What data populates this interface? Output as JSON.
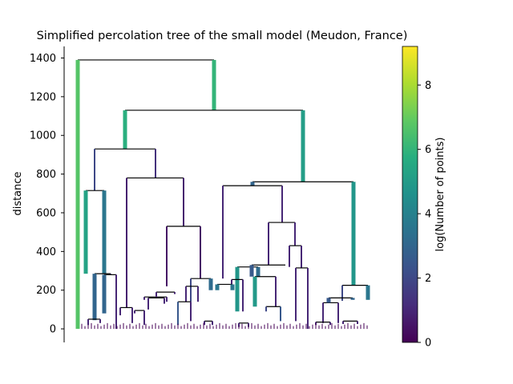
{
  "chart_data": {
    "type": "dendrogram",
    "title": "Simplified percolation tree of the small model (Meudon, France)",
    "ylabel": "distance",
    "xlabel": "",
    "ylim": [
      -70,
      1460
    ],
    "yticks": [
      0,
      200,
      400,
      600,
      800,
      1000,
      1200,
      1400
    ],
    "grid": false,
    "colormap": "viridis",
    "colorbar": {
      "label": "log(Number of points)",
      "range": [
        0,
        9.2
      ],
      "ticks": [
        0,
        2,
        4,
        6,
        8
      ]
    },
    "top_merges": [
      {
        "distance": 1390,
        "left_log_points": 6.7,
        "right_log_points": 6.0
      },
      {
        "distance": 1130,
        "left_log_points": 5.8,
        "right_log_points": 5.1
      },
      {
        "distance": 930,
        "left_log_points": 2.0,
        "right_log_points": 1.3
      },
      {
        "distance": 780,
        "left_log_points": 0.8,
        "right_log_points": 0.8
      },
      {
        "distance": 760,
        "left_log_points": 3.0,
        "right_log_points": 4.8
      },
      {
        "distance": 740,
        "left_log_points": 1.0,
        "right_log_points": 1.0
      },
      {
        "distance": 715,
        "left_log_points": 5.3,
        "right_log_points": 3.6
      },
      {
        "distance": 550,
        "left_log_points": 1.0,
        "right_log_points": 1.0
      },
      {
        "distance": 530,
        "left_log_points": 0.5,
        "right_log_points": 0.5
      },
      {
        "distance": 430,
        "left_log_points": 1.0,
        "right_log_points": 1.0
      },
      {
        "distance": 330,
        "left_log_points": 2.6,
        "right_log_points": 5.0
      },
      {
        "distance": 320,
        "left_log_points": 4.8,
        "right_log_points": 3.2
      },
      {
        "distance": 315,
        "left_log_points": 1.0,
        "right_log_points": 1.0
      },
      {
        "distance": 285,
        "left_log_points": 3.0,
        "right_log_points": 1.4
      },
      {
        "distance": 280,
        "left_log_points": 3.0,
        "right_log_points": 1.0
      },
      {
        "distance": 270,
        "left_log_points": 4.9,
        "right_log_points": 1.0
      },
      {
        "distance": 260,
        "left_log_points": 2.0,
        "right_log_points": 3.2
      },
      {
        "distance": 225,
        "left_log_points": 2.0,
        "right_log_points": 3.6
      }
    ]
  }
}
